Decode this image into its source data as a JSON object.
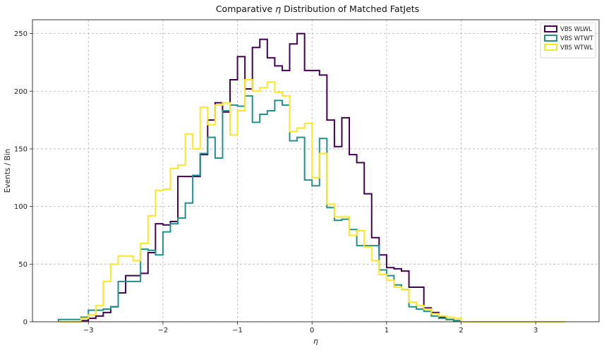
{
  "chart_data": {
    "type": "histogram-step",
    "title_prefix": "Comparative ",
    "title_symbol": "η",
    "title_suffix": " Distribution of Matched FatJets",
    "xlabel": "η",
    "ylabel": "Events / Bin",
    "xlim": [
      -3.75,
      3.85
    ],
    "ylim": [
      0,
      262
    ],
    "xticks": [
      -3,
      -2,
      -1,
      0,
      1,
      2,
      3
    ],
    "xtick_labels": [
      "−3",
      "−2",
      "−1",
      "0",
      "1",
      "2",
      "3"
    ],
    "yticks": [
      0,
      50,
      100,
      150,
      200,
      250
    ],
    "grid": true,
    "legend_position": "top-right",
    "bin_edges": [
      -3.4,
      -3.3,
      -3.2,
      -3.1,
      -3.0,
      -2.9,
      -2.8,
      -2.7,
      -2.6,
      -2.5,
      -2.4,
      -2.3,
      -2.2,
      -2.1,
      -2.0,
      -1.9,
      -1.8,
      -1.7,
      -1.6,
      -1.5,
      -1.4,
      -1.3,
      -1.2,
      -1.1,
      -1.0,
      -0.9,
      -0.8,
      -0.7,
      -0.6,
      -0.5,
      -0.4,
      -0.3,
      -0.2,
      -0.1,
      0.0,
      0.1,
      0.2,
      0.3,
      0.4,
      0.5,
      0.6,
      0.7,
      0.8,
      0.9,
      1.0,
      1.1,
      1.2,
      1.3,
      1.4,
      1.5,
      1.6,
      1.7,
      1.8,
      1.9,
      2.0,
      2.1,
      2.2,
      2.3,
      2.4,
      2.5,
      2.6,
      2.7,
      2.8,
      2.9,
      3.0,
      3.1,
      3.2,
      3.3,
      3.4
    ],
    "series": [
      {
        "name": "VBS WLWL",
        "color": "#440154",
        "values": [
          0,
          0,
          0,
          1,
          3,
          5,
          8,
          13,
          25,
          40,
          40,
          42,
          60,
          85,
          84,
          87,
          126,
          126,
          126,
          145,
          175,
          190,
          182,
          210,
          230,
          202,
          238,
          245,
          229,
          222,
          218,
          241,
          250,
          218,
          218,
          214,
          175,
          152,
          177,
          145,
          138,
          111,
          73,
          58,
          47,
          46,
          44,
          30,
          30,
          12,
          8,
          4,
          2,
          1,
          0,
          0,
          0,
          0,
          0,
          0,
          0,
          0,
          0,
          0,
          0,
          0,
          0,
          0
        ]
      },
      {
        "name": "VBS WTWT",
        "color": "#21918c",
        "values": [
          2,
          2,
          2,
          4,
          10,
          10,
          11,
          13,
          35,
          35,
          35,
          63,
          62,
          58,
          78,
          85,
          90,
          103,
          127,
          146,
          160,
          142,
          183,
          188,
          187,
          196,
          173,
          180,
          183,
          192,
          188,
          157,
          160,
          123,
          118,
          159,
          99,
          88,
          89,
          80,
          66,
          66,
          66,
          45,
          40,
          32,
          28,
          13,
          11,
          9,
          5,
          3,
          2,
          1,
          0,
          0,
          0,
          0,
          0,
          0,
          0,
          0,
          0,
          0,
          0,
          0,
          0,
          0
        ]
      },
      {
        "name": "VBS WTWL",
        "color": "#fde725",
        "values": [
          0,
          0,
          0,
          3,
          6,
          14,
          35,
          50,
          57,
          57,
          53,
          68,
          92,
          114,
          115,
          133,
          136,
          163,
          150,
          186,
          171,
          188,
          190,
          162,
          183,
          210,
          200,
          203,
          208,
          199,
          196,
          165,
          168,
          172,
          125,
          146,
          102,
          91,
          91,
          75,
          79,
          65,
          53,
          41,
          36,
          30,
          28,
          17,
          14,
          11,
          7,
          5,
          4,
          3,
          0,
          0,
          0,
          0,
          0,
          0,
          0,
          0,
          0,
          0,
          0,
          0,
          0,
          0
        ]
      }
    ]
  }
}
